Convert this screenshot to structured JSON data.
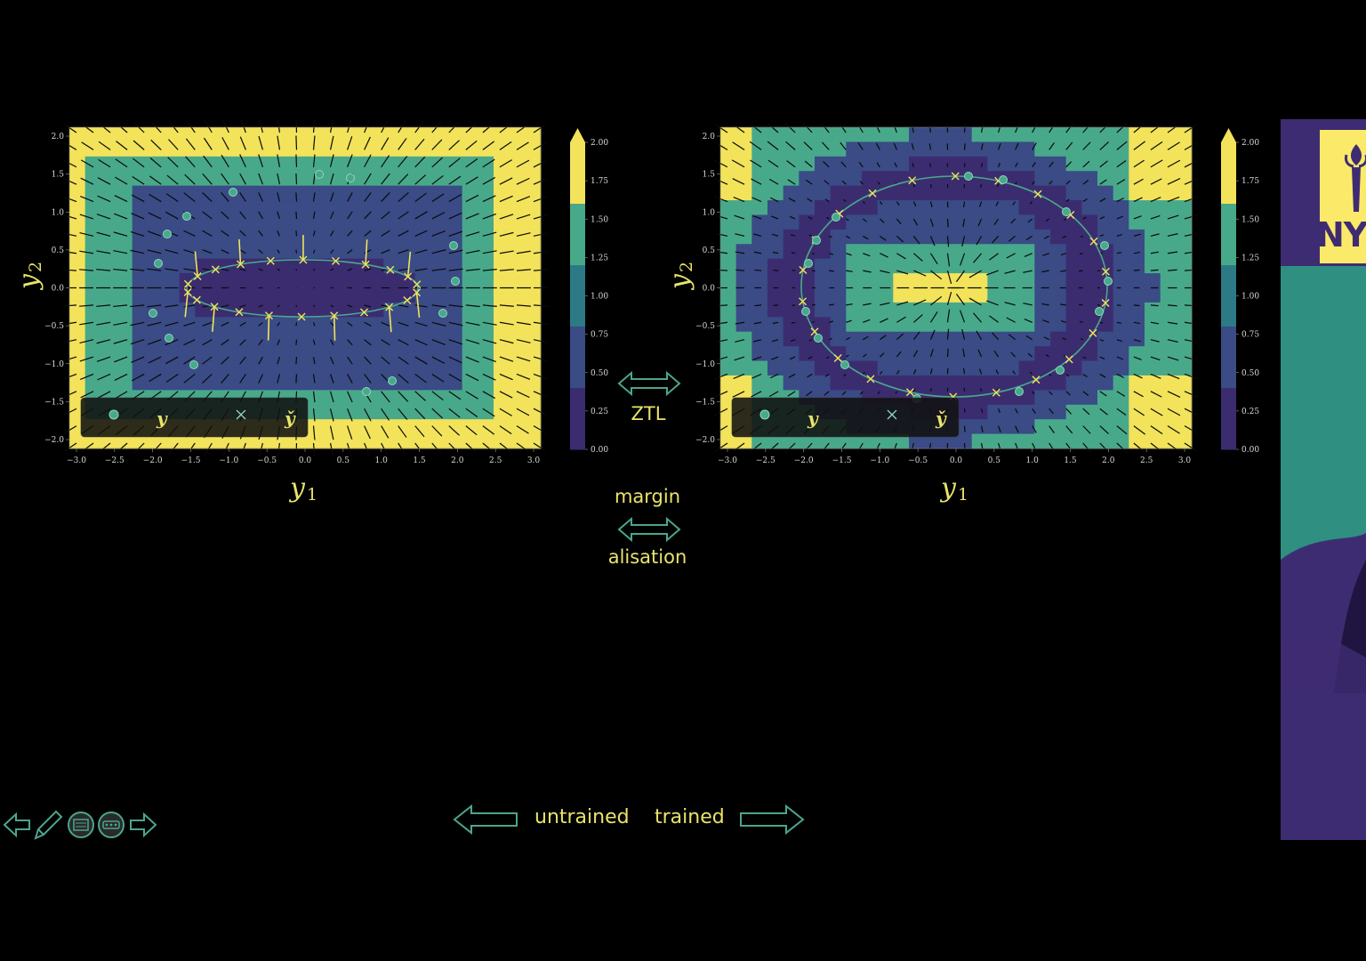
{
  "colors": {
    "background": "#000000",
    "low": "#3b2c70",
    "mid1": "#3a4b86",
    "mid2": "#2c7a85",
    "teal": "#48a98a",
    "high": "#f2e35a",
    "text_accent": "#e8e46a",
    "arrow_outline": "#4ba58e"
  },
  "left_plot": {
    "xlabel": "y",
    "xlabel_sub": "1",
    "ylabel": "y",
    "ylabel_sub": "2",
    "xticks": [
      "−3.0",
      "−2.5",
      "−2.0",
      "−1.5",
      "−1.0",
      "−0.5",
      "0.0",
      "0.5",
      "1.0",
      "1.5",
      "2.0",
      "2.5",
      "3.0"
    ],
    "yticks": [
      "2.0",
      "1.5",
      "1.0",
      "0.5",
      "0.0",
      "−0.5",
      "−1.0",
      "−1.5",
      "−2.0"
    ],
    "legend": {
      "entry1": "y",
      "entry2": "y̌"
    }
  },
  "right_plot": {
    "xlabel": "y",
    "xlabel_sub": "1",
    "ylabel": "y",
    "ylabel_sub": "2",
    "xticks": [
      "−3.0",
      "−2.5",
      "−2.0",
      "−1.5",
      "−1.0",
      "−0.5",
      "0.0",
      "0.5",
      "1.0",
      "1.5",
      "2.0",
      "2.5",
      "3.0"
    ],
    "yticks": [
      "2.0",
      "1.5",
      "1.0",
      "0.5",
      "0.0",
      "−0.5",
      "−1.0",
      "−1.5",
      "−2.0"
    ],
    "legend": {
      "entry1": "y",
      "entry2": "y̌"
    }
  },
  "colorbar": {
    "ticks": [
      "2.00",
      "1.75",
      "1.50",
      "1.25",
      "1.00",
      "0.75",
      "0.50",
      "0.25",
      "0.00"
    ]
  },
  "center": {
    "ztl_label": "ZTL",
    "margin_label": "margin",
    "alisation_label": "alisation"
  },
  "nav": {
    "untrained_label": "untrained",
    "trained_label": "trained"
  },
  "side_panel": {
    "logo_text": "NY"
  },
  "toolbar_icons": [
    "arrow-left-icon",
    "pencil-icon",
    "slides-overview-icon",
    "menu-dots-icon",
    "arrow-right-icon"
  ]
}
